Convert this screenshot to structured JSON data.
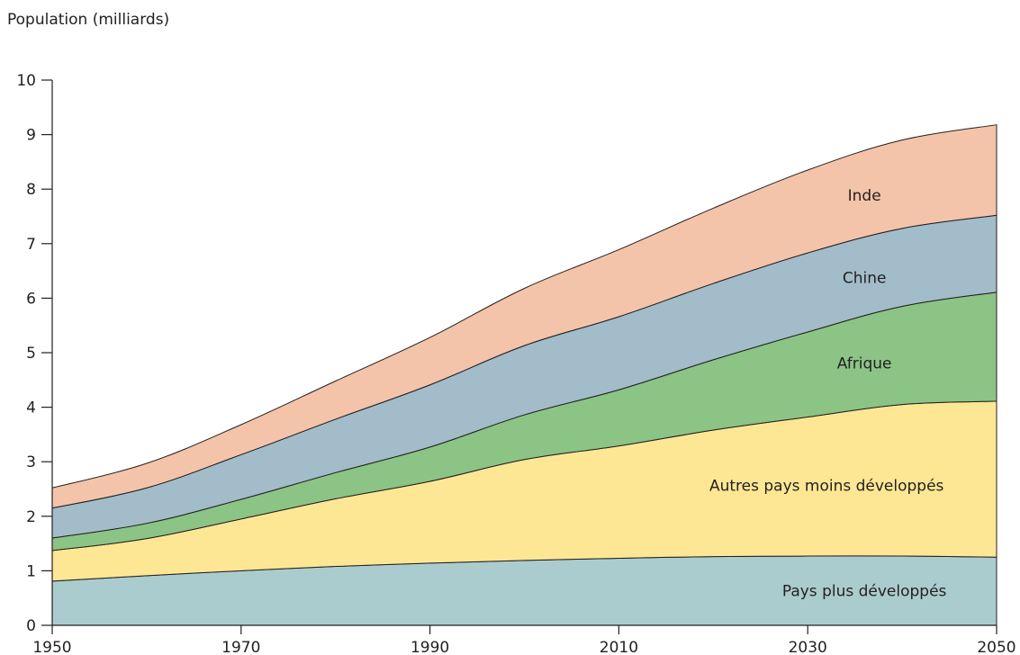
{
  "chart_data": {
    "type": "area",
    "stacked": true,
    "ylabel": "Population (milliards)",
    "xlabel": "",
    "xlim": [
      1950,
      2050
    ],
    "ylim": [
      0,
      10
    ],
    "x_ticks": [
      1950,
      1970,
      1990,
      2010,
      2030,
      2050
    ],
    "y_ticks": [
      0,
      1,
      2,
      3,
      4,
      5,
      6,
      7,
      8,
      9,
      10
    ],
    "grid": false,
    "x": [
      1950,
      1960,
      1970,
      1980,
      1990,
      2000,
      2010,
      2020,
      2030,
      2040,
      2050
    ],
    "series": [
      {
        "name": "Pays plus développés",
        "color": "#abcccf",
        "values": [
          0.81,
          0.91,
          1.0,
          1.08,
          1.14,
          1.19,
          1.23,
          1.26,
          1.27,
          1.27,
          1.25
        ]
      },
      {
        "name": "Autres pays moins développés",
        "color": "#fde794",
        "values": [
          0.56,
          0.68,
          0.95,
          1.24,
          1.5,
          1.85,
          2.06,
          2.32,
          2.55,
          2.78,
          2.86
        ]
      },
      {
        "name": "Afrique",
        "color": "#8bc485",
        "values": [
          0.23,
          0.28,
          0.36,
          0.48,
          0.63,
          0.82,
          1.03,
          1.29,
          1.56,
          1.8,
          2.0
        ]
      },
      {
        "name": "Chine",
        "color": "#a2bcc9",
        "values": [
          0.55,
          0.65,
          0.82,
          0.98,
          1.14,
          1.27,
          1.34,
          1.4,
          1.45,
          1.43,
          1.41
        ]
      },
      {
        "name": "Inde",
        "color": "#f3c4aa",
        "values": [
          0.37,
          0.45,
          0.55,
          0.7,
          0.87,
          1.05,
          1.23,
          1.38,
          1.52,
          1.62,
          1.66
        ]
      }
    ]
  }
}
